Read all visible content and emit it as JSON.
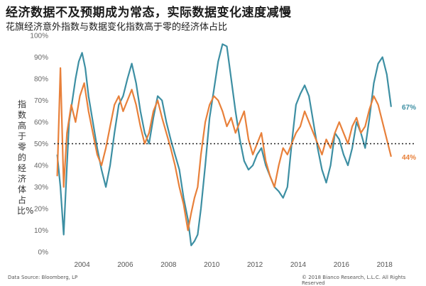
{
  "header": {
    "title": "经济数据不及预期成为常态，实际数据变化速度减慢",
    "subtitle": "花旗经济意外指数与数据变化指数高于零的经济体占比"
  },
  "footer": {
    "source": "Data Source: Bloomberg, LP",
    "copyright": "© 2018 Bianco Research, L.L.C. All Rights Reserved"
  },
  "chart_data": {
    "type": "line",
    "ylabel": "指数高于零的经济体占比%",
    "ylim": [
      0,
      100
    ],
    "y_ticks": [
      "0%",
      "10%",
      "20%",
      "30%",
      "40%",
      "50%",
      "60%",
      "70%",
      "80%",
      "90%",
      "100%"
    ],
    "xlim": [
      2002.7,
      2018.6
    ],
    "x_ticks": [
      "2004",
      "2006",
      "2008",
      "2010",
      "2012",
      "2014",
      "2016",
      "2018"
    ],
    "reference_line": 50,
    "grid": false,
    "series": [
      {
        "color": "#3d8fa3",
        "end_label": "67%",
        "x": [
          2002.85,
          2003.0,
          2003.15,
          2003.3,
          2003.4,
          2003.55,
          2003.7,
          2003.85,
          2004.0,
          2004.15,
          2004.3,
          2004.5,
          2004.7,
          2004.9,
          2005.1,
          2005.3,
          2005.5,
          2005.7,
          2005.9,
          2006.1,
          2006.3,
          2006.5,
          2006.7,
          2006.9,
          2007.1,
          2007.3,
          2007.5,
          2007.7,
          2007.9,
          2008.1,
          2008.3,
          2008.5,
          2008.7,
          2008.9,
          2009.05,
          2009.2,
          2009.35,
          2009.5,
          2009.7,
          2009.9,
          2010.1,
          2010.3,
          2010.5,
          2010.7,
          2010.9,
          2011.1,
          2011.3,
          2011.5,
          2011.7,
          2011.9,
          2012.1,
          2012.3,
          2012.5,
          2012.7,
          2012.9,
          2013.1,
          2013.3,
          2013.5,
          2013.7,
          2013.9,
          2014.1,
          2014.3,
          2014.5,
          2014.7,
          2014.9,
          2015.1,
          2015.3,
          2015.5,
          2015.7,
          2015.9,
          2016.1,
          2016.3,
          2016.5,
          2016.7,
          2016.9,
          2017.1,
          2017.3,
          2017.5,
          2017.7,
          2017.9,
          2018.1,
          2018.3
        ],
        "values": [
          45,
          30,
          8,
          40,
          60,
          70,
          80,
          88,
          92,
          85,
          72,
          60,
          48,
          38,
          30,
          40,
          55,
          68,
          72,
          80,
          87,
          78,
          65,
          55,
          50,
          62,
          72,
          70,
          60,
          52,
          45,
          38,
          25,
          15,
          3,
          5,
          8,
          20,
          40,
          62,
          75,
          88,
          96,
          95,
          80,
          65,
          52,
          42,
          38,
          40,
          45,
          48,
          40,
          35,
          30,
          28,
          25,
          30,
          50,
          68,
          73,
          77,
          72,
          60,
          48,
          38,
          32,
          40,
          55,
          52,
          45,
          40,
          48,
          60,
          55,
          48,
          62,
          78,
          87,
          90,
          82,
          67
        ]
      },
      {
        "color": "#e8803a",
        "end_label": "44%",
        "x": [
          2002.85,
          2003.0,
          2003.15,
          2003.3,
          2003.5,
          2003.7,
          2003.9,
          2004.1,
          2004.3,
          2004.5,
          2004.7,
          2004.9,
          2005.1,
          2005.3,
          2005.5,
          2005.7,
          2005.9,
          2006.1,
          2006.3,
          2006.5,
          2006.7,
          2006.9,
          2007.1,
          2007.3,
          2007.5,
          2007.7,
          2007.9,
          2008.1,
          2008.3,
          2008.5,
          2008.7,
          2008.9,
          2009.05,
          2009.2,
          2009.35,
          2009.5,
          2009.7,
          2009.9,
          2010.1,
          2010.3,
          2010.5,
          2010.7,
          2010.9,
          2011.1,
          2011.3,
          2011.5,
          2011.7,
          2011.9,
          2012.1,
          2012.3,
          2012.5,
          2012.7,
          2012.9,
          2013.1,
          2013.3,
          2013.5,
          2013.7,
          2013.9,
          2014.1,
          2014.3,
          2014.5,
          2014.7,
          2014.9,
          2015.1,
          2015.3,
          2015.5,
          2015.7,
          2015.9,
          2016.1,
          2016.3,
          2016.5,
          2016.7,
          2016.9,
          2017.1,
          2017.3,
          2017.5,
          2017.7,
          2017.9,
          2018.1,
          2018.3
        ],
        "values": [
          35,
          85,
          30,
          55,
          68,
          60,
          72,
          78,
          65,
          55,
          45,
          40,
          48,
          58,
          68,
          72,
          65,
          70,
          75,
          68,
          58,
          50,
          55,
          65,
          70,
          62,
          55,
          48,
          40,
          30,
          22,
          10,
          18,
          25,
          30,
          45,
          60,
          68,
          72,
          70,
          65,
          58,
          62,
          55,
          60,
          65,
          52,
          45,
          50,
          55,
          42,
          35,
          30,
          40,
          48,
          45,
          50,
          55,
          58,
          65,
          60,
          55,
          50,
          45,
          52,
          48,
          55,
          60,
          55,
          50,
          58,
          62,
          55,
          58,
          66,
          72,
          68,
          60,
          52,
          44
        ]
      }
    ]
  }
}
